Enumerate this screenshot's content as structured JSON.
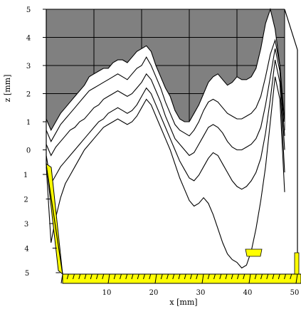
{
  "chart_data": {
    "type": "line",
    "title": "",
    "xlabel": "x [mm]",
    "ylabel": "z [mm]",
    "x_ticks": [
      10,
      20,
      30,
      40,
      50
    ],
    "x_tick_labels": [
      "10",
      "20",
      "30",
      "40",
      "50"
    ],
    "z_ticks_top": [
      5,
      4,
      3,
      2,
      1,
      0
    ],
    "z_tick_labels_top": [
      "5",
      "4",
      "3",
      "2",
      "1",
      "0"
    ],
    "z_ticks_bottom": [
      1,
      2,
      3,
      4,
      5
    ],
    "z_tick_labels_bottom": [
      "1",
      "2",
      "3",
      "4",
      "5"
    ],
    "xlim": [
      0,
      50
    ],
    "zlim": [
      -5,
      5
    ],
    "grid": true,
    "colors": {
      "surface_fill": "#808080",
      "floor_fill": "#ffff00",
      "line": "#000000",
      "grid": "#000000"
    },
    "series": [
      {
        "x": [
          0,
          1,
          2,
          3,
          4,
          5,
          6,
          7,
          8,
          9,
          10,
          11,
          12,
          13,
          14,
          15,
          16,
          17,
          18,
          19,
          20,
          21,
          22,
          23,
          24,
          25,
          26,
          27,
          28,
          29,
          30,
          31,
          32,
          33,
          34,
          35,
          36,
          37,
          38,
          39,
          40,
          41,
          42,
          43,
          44,
          45,
          46,
          47,
          48,
          49,
          50
        ],
        "z": [
          1.1,
          0.7,
          1.0,
          1.3,
          1.5,
          1.7,
          1.9,
          2.1,
          2.3,
          2.6,
          2.7,
          2.8,
          2.9,
          2.9,
          3.1,
          3.2,
          3.2,
          3.1,
          3.3,
          3.5,
          3.6,
          3.7,
          3.5,
          3.0,
          2.6,
          2.2,
          1.9,
          1.4,
          1.1,
          1.0,
          1.0,
          1.3,
          1.6,
          2.0,
          2.4,
          2.6,
          2.7,
          2.5,
          2.3,
          2.4,
          2.6,
          2.5,
          2.5,
          2.6,
          2.9,
          3.6,
          4.5,
          5.0,
          4.3,
          3.0,
          1.0
        ]
      },
      {
        "x": [
          0,
          1,
          2,
          3,
          4,
          5,
          6,
          7,
          8,
          9,
          10,
          11,
          12,
          13,
          14,
          15,
          16,
          17,
          18,
          19,
          20,
          21,
          22,
          23,
          24,
          25,
          26,
          27,
          28,
          29,
          30,
          31,
          32,
          33,
          34,
          35,
          36,
          37,
          38,
          39,
          40,
          41,
          42,
          43,
          44,
          45,
          46,
          47,
          48,
          49,
          50
        ],
        "z": [
          0.7,
          0.3,
          0.6,
          0.9,
          1.1,
          1.3,
          1.5,
          1.7,
          1.9,
          2.1,
          2.2,
          2.3,
          2.4,
          2.5,
          2.6,
          2.7,
          2.6,
          2.5,
          2.7,
          2.9,
          3.0,
          3.3,
          3.0,
          2.6,
          2.2,
          1.7,
          1.3,
          0.9,
          0.7,
          0.6,
          0.5,
          0.7,
          1.0,
          1.4,
          1.7,
          1.8,
          1.7,
          1.5,
          1.3,
          1.2,
          1.1,
          1.1,
          1.2,
          1.3,
          1.5,
          1.9,
          2.6,
          3.4,
          3.9,
          3.0,
          0.5
        ]
      },
      {
        "x": [
          0,
          1,
          2,
          3,
          4,
          5,
          6,
          7,
          8,
          9,
          10,
          11,
          12,
          13,
          14,
          15,
          16,
          17,
          18,
          19,
          20,
          21,
          22,
          23,
          24,
          25,
          26,
          27,
          28,
          29,
          30,
          31,
          32,
          33,
          34,
          35,
          36,
          37,
          38,
          39,
          40,
          41,
          42,
          43,
          44,
          45,
          46,
          47,
          48,
          49,
          50
        ],
        "z": [
          0.2,
          -0.2,
          0.1,
          0.3,
          0.5,
          0.7,
          0.8,
          1.0,
          1.1,
          1.3,
          1.5,
          1.6,
          1.8,
          1.9,
          2.0,
          2.1,
          2.0,
          1.9,
          2.0,
          2.2,
          2.4,
          2.7,
          2.5,
          2.1,
          1.7,
          1.2,
          0.8,
          0.4,
          0.2,
          0.0,
          -0.2,
          -0.1,
          0.2,
          0.5,
          0.8,
          0.9,
          0.8,
          0.6,
          0.3,
          0.1,
          0.0,
          0.0,
          0.1,
          0.2,
          0.4,
          0.8,
          1.6,
          2.6,
          3.6,
          2.8,
          0.0
        ]
      },
      {
        "x": [
          0,
          1,
          2,
          3,
          4,
          5,
          6,
          7,
          8,
          9,
          10,
          11,
          12,
          13,
          14,
          15,
          16,
          17,
          18,
          19,
          20,
          21,
          22,
          23,
          24,
          25,
          26,
          27,
          28,
          29,
          30,
          31,
          32,
          33,
          34,
          35,
          36,
          37,
          38,
          39,
          40,
          41,
          42,
          43,
          44,
          45,
          46,
          47,
          48,
          49,
          50
        ],
        "z": [
          -0.2,
          -1.2,
          -0.9,
          -0.6,
          -0.4,
          -0.2,
          0.0,
          0.2,
          0.4,
          0.6,
          0.8,
          1.0,
          1.1,
          1.3,
          1.4,
          1.5,
          1.4,
          1.3,
          1.4,
          1.6,
          1.9,
          2.2,
          2.0,
          1.6,
          1.2,
          0.8,
          0.4,
          0.0,
          -0.4,
          -0.7,
          -1.0,
          -1.1,
          -0.9,
          -0.6,
          -0.3,
          -0.1,
          -0.2,
          -0.5,
          -0.8,
          -1.1,
          -1.3,
          -1.4,
          -1.3,
          -1.1,
          -0.8,
          -0.3,
          0.6,
          1.8,
          3.2,
          2.4,
          -0.8
        ]
      },
      {
        "x": [
          0,
          1,
          2,
          3,
          4,
          5,
          6,
          7,
          8,
          9,
          10,
          11,
          12,
          13,
          14,
          15,
          16,
          17,
          18,
          19,
          20,
          21,
          22,
          23,
          24,
          25,
          26,
          27,
          28,
          29,
          30,
          31,
          32,
          33,
          34,
          35,
          36,
          37,
          38,
          39,
          40,
          41,
          42,
          43,
          44,
          45,
          46,
          47,
          48,
          49,
          50
        ],
        "z": [
          -0.6,
          -3.3,
          -2.4,
          -1.7,
          -1.2,
          -0.9,
          -0.6,
          -0.3,
          0.0,
          0.2,
          0.4,
          0.6,
          0.8,
          0.9,
          1.0,
          1.1,
          1.0,
          0.9,
          1.0,
          1.2,
          1.5,
          1.8,
          1.6,
          1.2,
          0.8,
          0.4,
          0.0,
          -0.5,
          -1.0,
          -1.4,
          -1.8,
          -2.0,
          -1.9,
          -1.7,
          -1.9,
          -2.3,
          -2.8,
          -3.3,
          -3.7,
          -3.9,
          -4.0,
          -4.2,
          -4.1,
          -3.6,
          -2.8,
          -1.8,
          -0.6,
          1.0,
          2.6,
          1.8,
          -1.5
        ]
      }
    ]
  }
}
